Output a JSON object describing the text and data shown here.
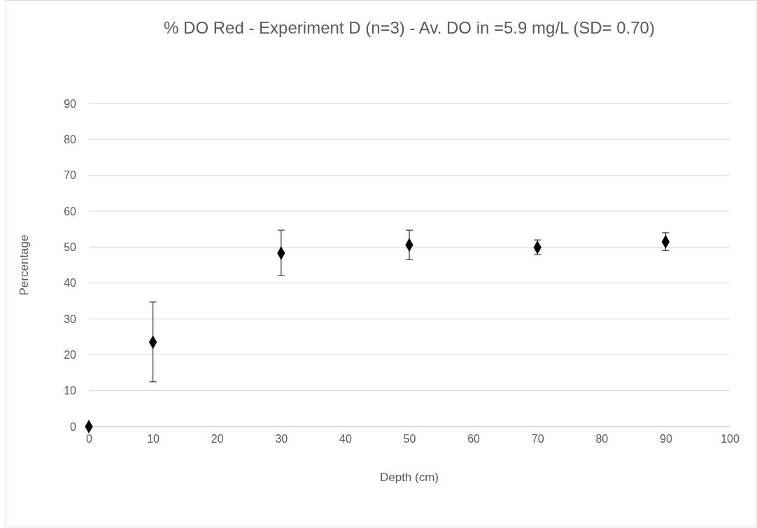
{
  "chart_data": {
    "type": "scatter",
    "title": "% DO Red - Experiment D (n=3) - Av. DO in =5.9 mg/L (SD= 0.70)",
    "xlabel": "Depth (cm)",
    "ylabel": "Percentage",
    "x": [
      0,
      10,
      30,
      50,
      70,
      90
    ],
    "values": [
      0,
      23.5,
      48.3,
      50.6,
      49.9,
      51.5
    ],
    "errors": [
      null,
      [
        12.5,
        34.7
      ],
      [
        42.1,
        54.7
      ],
      [
        46.5,
        54.7
      ],
      [
        47.9,
        52.0
      ],
      [
        49.0,
        54.0
      ]
    ],
    "color": "#000000",
    "marker": "diamond",
    "xlim": [
      0,
      100
    ],
    "xticks": [
      0,
      10,
      20,
      30,
      40,
      50,
      60,
      70,
      80,
      90,
      100
    ],
    "ylim": [
      0,
      90
    ],
    "yticks": [
      0,
      10,
      20,
      30,
      40,
      50,
      60,
      70,
      80,
      90
    ],
    "grid": "y"
  }
}
